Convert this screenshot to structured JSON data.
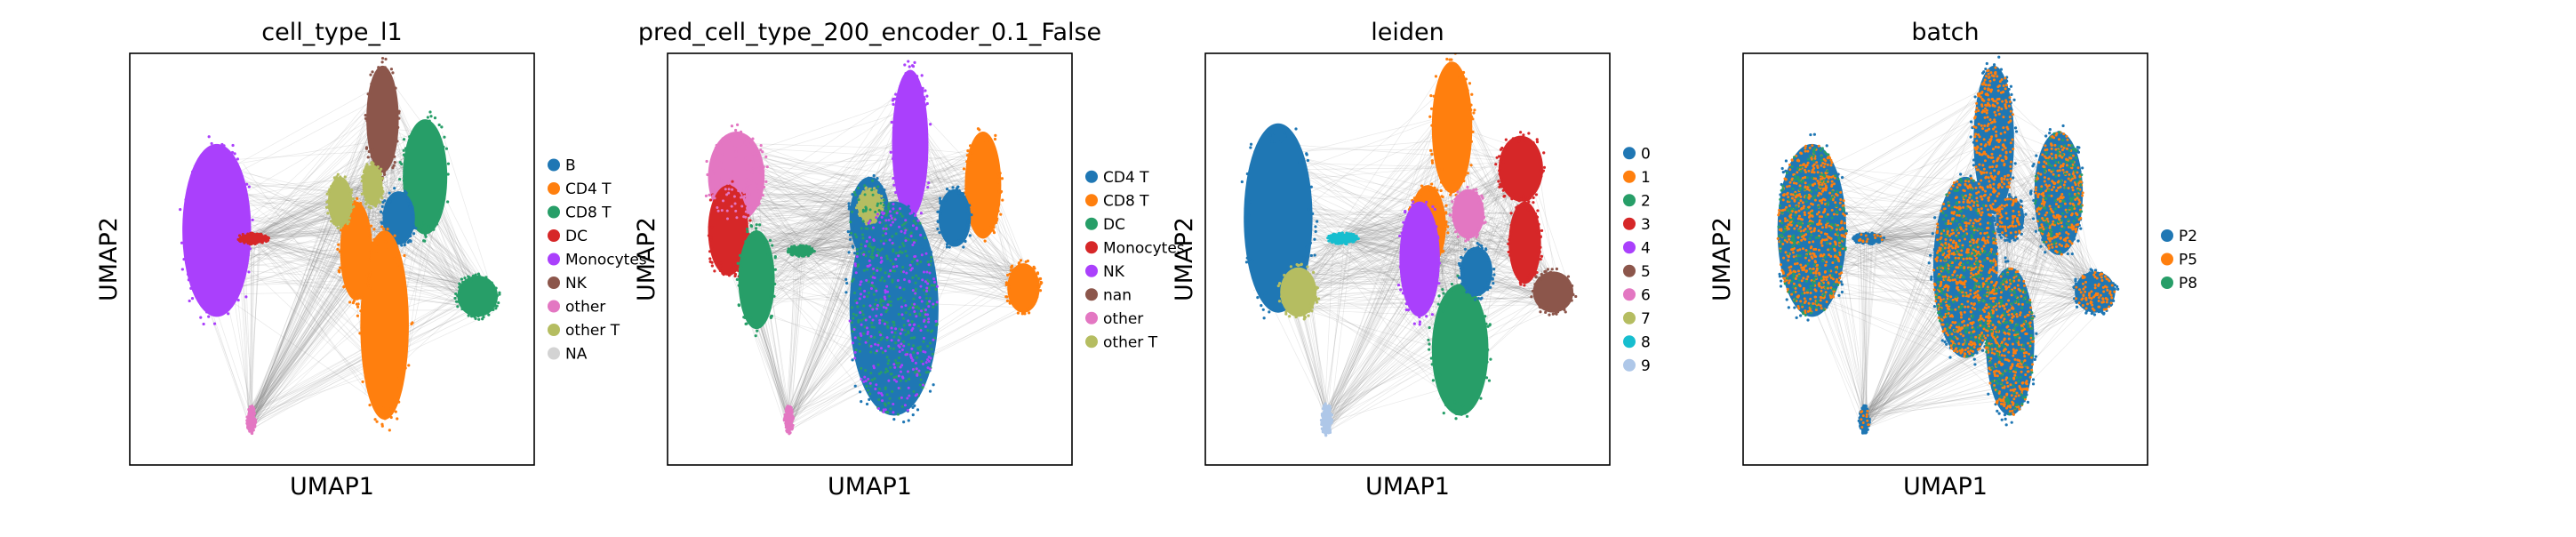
{
  "figure": {
    "panels": [
      {
        "title": "cell_type_l1",
        "xlabel": "UMAP1",
        "ylabel": "UMAP2",
        "legend": [
          {
            "label": "B",
            "color": "#1f77b4"
          },
          {
            "label": "CD4 T",
            "color": "#ff7f0e"
          },
          {
            "label": "CD8 T",
            "color": "#279e68"
          },
          {
            "label": "DC",
            "color": "#d62728"
          },
          {
            "label": "Monocytes",
            "color": "#aa40fc"
          },
          {
            "label": "NK",
            "color": "#8c564b"
          },
          {
            "label": "other",
            "color": "#e377c2"
          },
          {
            "label": "other T",
            "color": "#b5bd61"
          },
          {
            "label": "NA",
            "color": "#d3d3d3"
          }
        ]
      },
      {
        "title": "pred_cell_type_200_encoder_0.1_False",
        "xlabel": "UMAP1",
        "ylabel": "UMAP2",
        "legend": [
          {
            "label": "CD4 T",
            "color": "#1f77b4"
          },
          {
            "label": "CD8 T",
            "color": "#ff7f0e"
          },
          {
            "label": "DC",
            "color": "#279e68"
          },
          {
            "label": "Monocytes",
            "color": "#d62728"
          },
          {
            "label": "NK",
            "color": "#aa40fc"
          },
          {
            "label": "nan",
            "color": "#8c564b"
          },
          {
            "label": "other",
            "color": "#e377c2"
          },
          {
            "label": "other T",
            "color": "#b5bd61"
          }
        ]
      },
      {
        "title": "leiden",
        "xlabel": "UMAP1",
        "ylabel": "UMAP2",
        "legend": [
          {
            "label": "0",
            "color": "#1f77b4"
          },
          {
            "label": "1",
            "color": "#ff7f0e"
          },
          {
            "label": "2",
            "color": "#279e68"
          },
          {
            "label": "3",
            "color": "#d62728"
          },
          {
            "label": "4",
            "color": "#aa40fc"
          },
          {
            "label": "5",
            "color": "#8c564b"
          },
          {
            "label": "6",
            "color": "#e377c2"
          },
          {
            "label": "7",
            "color": "#b5bd61"
          },
          {
            "label": "8",
            "color": "#17becf"
          },
          {
            "label": "9",
            "color": "#aec7e8"
          }
        ]
      },
      {
        "title": "batch",
        "xlabel": "UMAP1",
        "ylabel": "UMAP2",
        "legend": [
          {
            "label": "P2",
            "color": "#1f77b4"
          },
          {
            "label": "P5",
            "color": "#ff7f0e"
          },
          {
            "label": "P8",
            "color": "#279e68"
          }
        ]
      }
    ]
  },
  "chart_data": [
    {
      "type": "scatter",
      "title": "cell_type_l1",
      "xlabel": "UMAP1",
      "ylabel": "UMAP2",
      "grid": false,
      "legend_position": "right",
      "series": [
        {
          "name": "B",
          "color": "#1f77b4"
        },
        {
          "name": "CD4 T",
          "color": "#ff7f0e"
        },
        {
          "name": "CD8 T",
          "color": "#279e68"
        },
        {
          "name": "DC",
          "color": "#d62728"
        },
        {
          "name": "Monocytes",
          "color": "#aa40fc"
        },
        {
          "name": "NK",
          "color": "#8c564b"
        },
        {
          "name": "other",
          "color": "#e377c2"
        },
        {
          "name": "other T",
          "color": "#b5bd61"
        },
        {
          "name": "NA",
          "color": "#d3d3d3"
        }
      ]
    },
    {
      "type": "scatter",
      "title": "pred_cell_type_200_encoder_0.1_False",
      "xlabel": "UMAP1",
      "ylabel": "UMAP2",
      "grid": false,
      "legend_position": "right",
      "series": [
        {
          "name": "CD4 T",
          "color": "#1f77b4"
        },
        {
          "name": "CD8 T",
          "color": "#ff7f0e"
        },
        {
          "name": "DC",
          "color": "#279e68"
        },
        {
          "name": "Monocytes",
          "color": "#d62728"
        },
        {
          "name": "NK",
          "color": "#aa40fc"
        },
        {
          "name": "nan",
          "color": "#8c564b"
        },
        {
          "name": "other",
          "color": "#e377c2"
        },
        {
          "name": "other T",
          "color": "#b5bd61"
        }
      ]
    },
    {
      "type": "scatter",
      "title": "leiden",
      "xlabel": "UMAP1",
      "ylabel": "UMAP2",
      "grid": false,
      "legend_position": "right",
      "series": [
        {
          "name": "0",
          "color": "#1f77b4"
        },
        {
          "name": "1",
          "color": "#ff7f0e"
        },
        {
          "name": "2",
          "color": "#279e68"
        },
        {
          "name": "3",
          "color": "#d62728"
        },
        {
          "name": "4",
          "color": "#aa40fc"
        },
        {
          "name": "5",
          "color": "#8c564b"
        },
        {
          "name": "6",
          "color": "#e377c2"
        },
        {
          "name": "7",
          "color": "#b5bd61"
        },
        {
          "name": "8",
          "color": "#17becf"
        },
        {
          "name": "9",
          "color": "#aec7e8"
        }
      ]
    },
    {
      "type": "scatter",
      "title": "batch",
      "xlabel": "UMAP1",
      "ylabel": "UMAP2",
      "grid": false,
      "legend_position": "right",
      "series": [
        {
          "name": "P2",
          "color": "#1f77b4"
        },
        {
          "name": "P5",
          "color": "#ff7f0e"
        },
        {
          "name": "P8",
          "color": "#279e68"
        }
      ]
    }
  ]
}
